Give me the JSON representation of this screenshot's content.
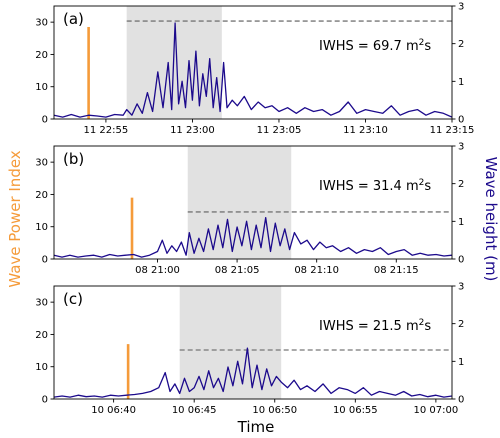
{
  "figure": {
    "y_left_label": "Wave Power Index",
    "y_right_label": "Wave height (m)",
    "x_label": "Time",
    "colors": {
      "wpi": "#f59b3a",
      "wave": "#1c0a8c",
      "shade": "#e1e1e1",
      "threshold": "#777777"
    }
  },
  "chart_data": [
    {
      "type": "line",
      "panel_label": "(a)",
      "iwhs_text": "IWHS = 69.7 m",
      "iwhs_unit_sup": "2",
      "iwhs_unit_tail": "s",
      "x_unit": "minutes",
      "xlim": [
        -3.0,
        20.0
      ],
      "x_ticks": [
        0,
        5,
        10,
        15,
        20
      ],
      "x_tick_labels": [
        "11 22:55",
        "11 23:00",
        "11 23:05",
        "11 23:10",
        "11 23:15"
      ],
      "ylim_left": [
        0,
        35
      ],
      "y_ticks_left": [
        0,
        10,
        20,
        30
      ],
      "ylim_right": [
        0,
        3
      ],
      "y_ticks_right": [
        0,
        1,
        2,
        3
      ],
      "wpi_bar": {
        "x": -1.0,
        "value": 28.5
      },
      "shaded_region": [
        1.2,
        6.7
      ],
      "threshold": {
        "value_m": 2.6,
        "from": 1.2,
        "to": 20.0
      },
      "series": [
        {
          "name": "",
          "axis": "right",
          "x": [
            -3.0,
            -2.5,
            -2.0,
            -1.5,
            -1.0,
            -0.5,
            0.0,
            0.5,
            1.0,
            1.2,
            1.5,
            1.8,
            2.1,
            2.4,
            2.7,
            3.0,
            3.3,
            3.6,
            3.8,
            4.0,
            4.2,
            4.4,
            4.6,
            4.8,
            5.0,
            5.2,
            5.4,
            5.6,
            5.8,
            6.0,
            6.2,
            6.4,
            6.6,
            6.8,
            7.0,
            7.3,
            7.6,
            8.0,
            8.4,
            8.8,
            9.2,
            9.6,
            10.0,
            10.5,
            11.0,
            11.5,
            12.0,
            12.5,
            13.0,
            13.5,
            14.0,
            14.5,
            15.0,
            15.5,
            16.0,
            16.5,
            17.0,
            17.5,
            18.0,
            18.5,
            19.0,
            19.5,
            20.0
          ],
          "y": [
            0.1,
            0.05,
            0.12,
            0.05,
            0.1,
            0.08,
            0.05,
            0.12,
            0.1,
            0.25,
            0.1,
            0.4,
            0.15,
            0.7,
            0.2,
            1.25,
            0.3,
            1.5,
            0.25,
            2.55,
            0.4,
            1.0,
            0.3,
            1.55,
            0.5,
            1.8,
            0.35,
            1.2,
            0.6,
            1.6,
            0.3,
            1.1,
            0.2,
            1.5,
            0.3,
            0.5,
            0.35,
            0.6,
            0.25,
            0.45,
            0.3,
            0.35,
            0.2,
            0.3,
            0.15,
            0.3,
            0.2,
            0.25,
            0.1,
            0.2,
            0.45,
            0.15,
            0.25,
            0.2,
            0.15,
            0.35,
            0.1,
            0.2,
            0.25,
            0.1,
            0.2,
            0.15,
            0.05
          ]
        }
      ]
    },
    {
      "type": "line",
      "panel_label": "(b)",
      "iwhs_text": "IWHS = 31.4 m",
      "iwhs_unit_sup": "2",
      "iwhs_unit_tail": "s",
      "x_unit": "minutes",
      "xlim": [
        -6.5,
        18.5
      ],
      "x_ticks": [
        0,
        5,
        10,
        15
      ],
      "x_tick_labels": [
        "08 21:00",
        "08 21:05",
        "08 21:10",
        "08 21:15"
      ],
      "ylim_left": [
        0,
        35
      ],
      "y_ticks_left": [
        0,
        10,
        20,
        30
      ],
      "ylim_right": [
        0,
        3
      ],
      "y_ticks_right": [
        0,
        1,
        2,
        3
      ],
      "wpi_bar": {
        "x": -1.6,
        "value": 19.0
      },
      "shaded_region": [
        1.9,
        8.4
      ],
      "threshold": {
        "value_m": 1.25,
        "from": 1.9,
        "to": 18.5
      },
      "series": [
        {
          "name": "",
          "axis": "right",
          "x": [
            -6.5,
            -6.0,
            -5.5,
            -5.0,
            -4.5,
            -4.0,
            -3.5,
            -3.0,
            -2.5,
            -2.0,
            -1.5,
            -1.0,
            -0.5,
            0.0,
            0.3,
            0.6,
            0.9,
            1.2,
            1.5,
            1.8,
            2.0,
            2.3,
            2.6,
            2.9,
            3.2,
            3.5,
            3.8,
            4.1,
            4.4,
            4.7,
            5.0,
            5.3,
            5.6,
            5.9,
            6.2,
            6.5,
            6.8,
            7.1,
            7.4,
            7.7,
            8.0,
            8.3,
            8.6,
            9.0,
            9.4,
            9.8,
            10.2,
            10.6,
            11.0,
            11.5,
            12.0,
            12.5,
            13.0,
            13.5,
            14.0,
            14.5,
            15.0,
            15.5,
            16.0,
            16.5,
            17.0,
            17.5,
            18.0,
            18.5
          ],
          "y": [
            0.1,
            0.05,
            0.1,
            0.05,
            0.08,
            0.1,
            0.05,
            0.12,
            0.08,
            0.1,
            0.12,
            0.05,
            0.1,
            0.2,
            0.5,
            0.15,
            0.35,
            0.2,
            0.45,
            0.1,
            0.7,
            0.15,
            0.55,
            0.2,
            0.8,
            0.25,
            0.9,
            0.3,
            1.05,
            0.2,
            0.85,
            0.35,
            1.0,
            0.25,
            0.9,
            0.3,
            1.1,
            0.2,
            0.95,
            0.35,
            0.8,
            0.25,
            0.7,
            0.4,
            0.5,
            0.25,
            0.45,
            0.3,
            0.35,
            0.2,
            0.3,
            0.15,
            0.25,
            0.2,
            0.3,
            0.12,
            0.2,
            0.25,
            0.1,
            0.15,
            0.1,
            0.12,
            0.08,
            0.1
          ]
        }
      ]
    },
    {
      "type": "line",
      "panel_label": "(c)",
      "iwhs_text": "IWHS = 21.5 m",
      "iwhs_unit_sup": "2",
      "iwhs_unit_tail": "s",
      "x_unit": "minutes",
      "xlim": [
        -3.7,
        21.0
      ],
      "x_ticks": [
        0,
        5,
        10,
        15,
        20
      ],
      "x_tick_labels": [
        "10 06:40",
        "10 06:45",
        "10 06:50",
        "10 06:55",
        "10 07:00"
      ],
      "ylim_left": [
        0,
        35
      ],
      "y_ticks_left": [
        0,
        10,
        20,
        30
      ],
      "ylim_right": [
        0,
        3
      ],
      "y_ticks_right": [
        0,
        1,
        2,
        3
      ],
      "wpi_bar": {
        "x": 0.9,
        "value": 17.0
      },
      "shaded_region": [
        4.1,
        10.4
      ],
      "threshold": {
        "value_m": 1.3,
        "from": 4.1,
        "to": 21.0
      },
      "series": [
        {
          "name": "",
          "axis": "right",
          "x": [
            -3.7,
            -3.2,
            -2.7,
            -2.2,
            -1.7,
            -1.2,
            -0.7,
            -0.2,
            0.3,
            0.8,
            1.3,
            1.8,
            2.3,
            2.8,
            3.2,
            3.5,
            3.8,
            4.1,
            4.4,
            4.7,
            5.0,
            5.3,
            5.6,
            5.9,
            6.2,
            6.5,
            6.8,
            7.1,
            7.4,
            7.7,
            8.0,
            8.3,
            8.6,
            8.9,
            9.2,
            9.5,
            9.8,
            10.1,
            10.4,
            10.8,
            11.2,
            11.6,
            12.0,
            12.5,
            13.0,
            13.5,
            14.0,
            14.5,
            15.0,
            15.5,
            16.0,
            16.5,
            17.0,
            17.5,
            18.0,
            18.5,
            19.0,
            19.5,
            20.0,
            20.5,
            21.0
          ],
          "y": [
            0.05,
            0.08,
            0.05,
            0.1,
            0.06,
            0.08,
            0.05,
            0.1,
            0.08,
            0.1,
            0.12,
            0.15,
            0.2,
            0.3,
            0.7,
            0.2,
            0.4,
            0.15,
            0.55,
            0.2,
            0.3,
            0.6,
            0.25,
            0.75,
            0.3,
            0.55,
            0.2,
            0.85,
            0.35,
            1.0,
            0.4,
            1.35,
            0.3,
            0.9,
            0.25,
            0.8,
            0.35,
            0.6,
            0.45,
            0.3,
            0.5,
            0.25,
            0.35,
            0.2,
            0.4,
            0.15,
            0.3,
            0.25,
            0.15,
            0.3,
            0.1,
            0.2,
            0.15,
            0.1,
            0.2,
            0.08,
            0.12,
            0.06,
            0.1,
            0.05,
            0.08
          ]
        }
      ]
    }
  ]
}
